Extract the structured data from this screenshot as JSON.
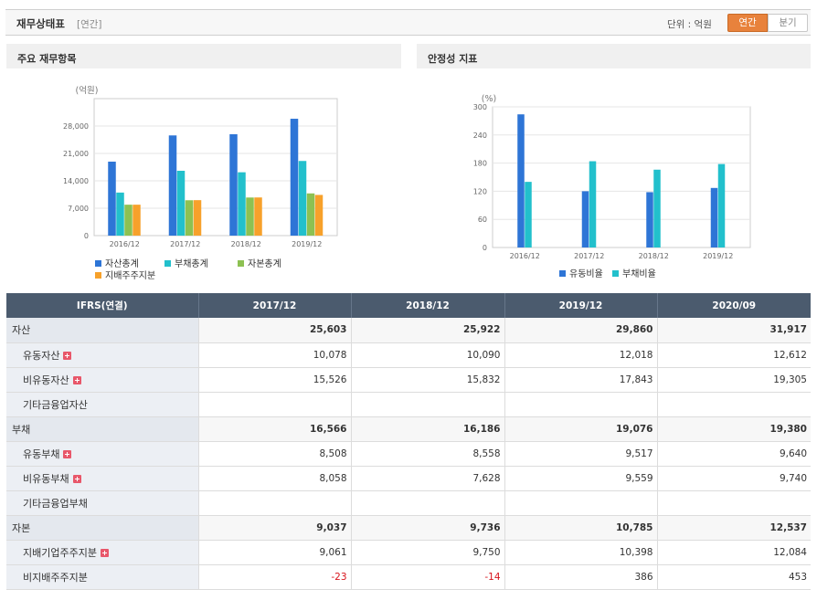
{
  "header": {
    "title": "재무상태표",
    "subtitle": "[연간]",
    "unit_label": "단위 : 억원",
    "btn_annual": "연간",
    "btn_quarter": "분기"
  },
  "chart_data": [
    {
      "type": "bar",
      "title": "주요 재무항목",
      "ylabel": "(억원)",
      "ylim": [
        0,
        35000
      ],
      "yticks": [
        0,
        7000,
        14000,
        21000,
        28000
      ],
      "ytick_labels": [
        "0",
        "7,000",
        "14,000",
        "21,000",
        "28,000"
      ],
      "categories": [
        "2016/12",
        "2017/12",
        "2018/12",
        "2019/12"
      ],
      "series": [
        {
          "name": "자산총계",
          "color": "#2e75d6",
          "values": [
            18900,
            25600,
            25900,
            29860
          ]
        },
        {
          "name": "부채총계",
          "color": "#22c0cc",
          "values": [
            11000,
            16566,
            16186,
            19076
          ]
        },
        {
          "name": "자본총계",
          "color": "#8dc152",
          "values": [
            7900,
            9037,
            9736,
            10785
          ]
        },
        {
          "name": "지배주주지분",
          "color": "#f7a12b",
          "values": [
            7900,
            9061,
            9750,
            10398
          ]
        }
      ]
    },
    {
      "type": "bar",
      "title": "안정성 지표",
      "ylabel": "(%)",
      "ylim": [
        0,
        300
      ],
      "yticks": [
        0,
        60,
        120,
        180,
        240,
        300
      ],
      "ytick_labels": [
        "0",
        "60",
        "120",
        "180",
        "240",
        "300"
      ],
      "categories": [
        "2016/12",
        "2017/12",
        "2018/12",
        "2019/12"
      ],
      "series": [
        {
          "name": "유동비율",
          "color": "#2e75d6",
          "values": [
            284,
            120,
            118,
            127
          ]
        },
        {
          "name": "부채비율",
          "color": "#22c0cc",
          "values": [
            140,
            184,
            166,
            178
          ]
        }
      ]
    }
  ],
  "table": {
    "headers": [
      "IFRS(연결)",
      "2017/12",
      "2018/12",
      "2019/12",
      "2020/09"
    ],
    "rows": [
      {
        "label": "자산",
        "level": "major",
        "plus": false,
        "values": [
          "25,603",
          "25,922",
          "29,860",
          "31,917"
        ]
      },
      {
        "label": "유동자산",
        "level": "minor",
        "plus": true,
        "values": [
          "10,078",
          "10,090",
          "12,018",
          "12,612"
        ]
      },
      {
        "label": "비유동자산",
        "level": "minor",
        "plus": true,
        "values": [
          "15,526",
          "15,832",
          "17,843",
          "19,305"
        ]
      },
      {
        "label": "기타금융업자산",
        "level": "minor",
        "plus": false,
        "values": [
          "",
          "",
          "",
          ""
        ]
      },
      {
        "label": "부채",
        "level": "major",
        "plus": false,
        "values": [
          "16,566",
          "16,186",
          "19,076",
          "19,380"
        ]
      },
      {
        "label": "유동부채",
        "level": "minor",
        "plus": true,
        "values": [
          "8,508",
          "8,558",
          "9,517",
          "9,640"
        ]
      },
      {
        "label": "비유동부채",
        "level": "minor",
        "plus": true,
        "values": [
          "8,058",
          "7,628",
          "9,559",
          "9,740"
        ]
      },
      {
        "label": "기타금융업부채",
        "level": "minor",
        "plus": false,
        "values": [
          "",
          "",
          "",
          ""
        ]
      },
      {
        "label": "자본",
        "level": "major",
        "plus": false,
        "values": [
          "9,037",
          "9,736",
          "10,785",
          "12,537"
        ]
      },
      {
        "label": "지배기업주주지분",
        "level": "minor",
        "plus": true,
        "values": [
          "9,061",
          "9,750",
          "10,398",
          "12,084"
        ]
      },
      {
        "label": "비지배주주지분",
        "level": "minor",
        "plus": false,
        "values": [
          "-23",
          "-14",
          "386",
          "453"
        ]
      }
    ]
  }
}
